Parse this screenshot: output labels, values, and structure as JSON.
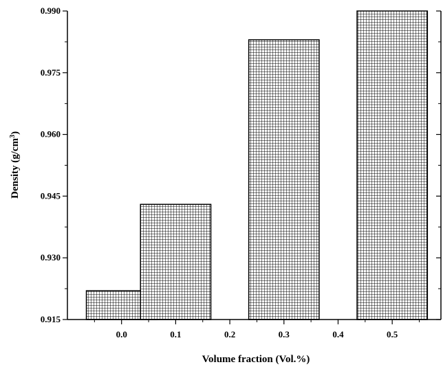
{
  "chart_data": {
    "type": "bar",
    "title": "",
    "xlabel": "Volume fraction (Vol.%)",
    "ylabel_main": "Density (g/cm",
    "ylabel_sup": "3",
    "ylabel_close": ")",
    "xlim": [
      -0.1,
      0.59
    ],
    "ylim": [
      0.915,
      0.99
    ],
    "x_ticks": [
      0.0,
      0.1,
      0.2,
      0.3,
      0.4,
      0.5
    ],
    "x_tick_labels": [
      "0.0",
      "0.1",
      "0.2",
      "0.3",
      "0.4",
      "0.5"
    ],
    "y_ticks": [
      0.915,
      0.93,
      0.945,
      0.96,
      0.975,
      0.99
    ],
    "y_tick_labels": [
      "0.915",
      "0.930",
      "0.945",
      "0.960",
      "0.975",
      "0.990"
    ],
    "bar_width": 0.13,
    "bars": [
      {
        "x": 0.0,
        "value": 0.922
      },
      {
        "x": 0.1,
        "value": 0.943
      },
      {
        "x": 0.3,
        "value": 0.983
      },
      {
        "x": 0.5,
        "value": 0.99
      }
    ],
    "fill_pattern": "crosshatch",
    "grid": false,
    "legend": "none",
    "colors": {
      "bar_fill": "#ffffff",
      "hatch": "#000000",
      "axis": "#000000"
    }
  }
}
